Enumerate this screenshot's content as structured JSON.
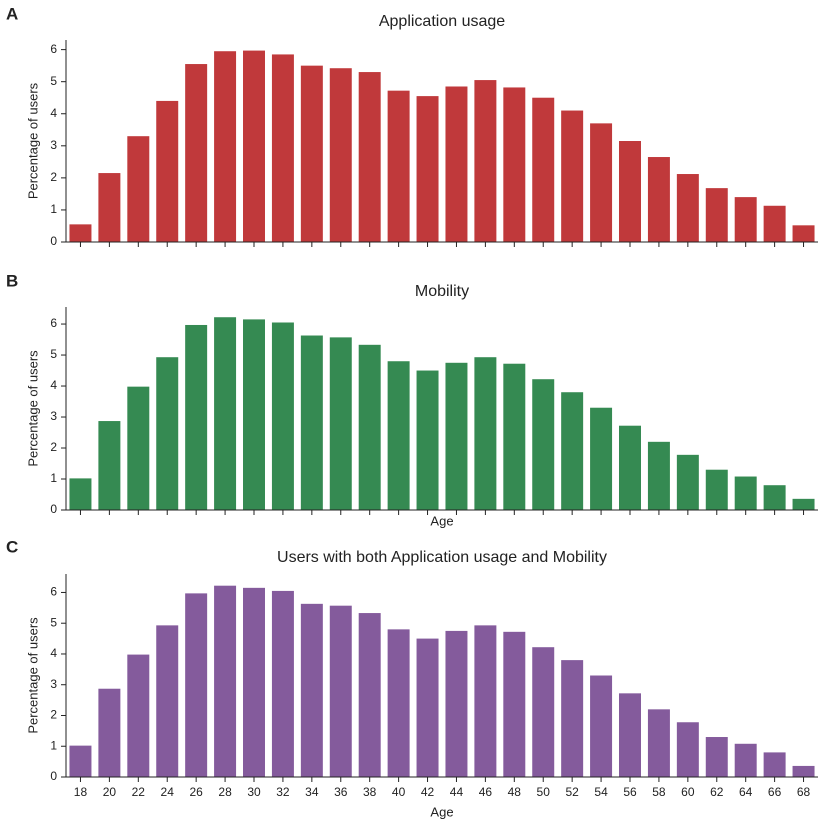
{
  "chart_data": [
    {
      "type": "bar",
      "panel": "A",
      "title": "Application usage",
      "ylabel": "Percentage of users",
      "color": "#c0393b",
      "categories": [
        null,
        null,
        null,
        null,
        null,
        null,
        null,
        null,
        null,
        null,
        null,
        null,
        null,
        null,
        null,
        null,
        null,
        null,
        null,
        null,
        null,
        null,
        null,
        null,
        null,
        null
      ],
      "values": [
        0.55,
        2.15,
        3.3,
        4.4,
        5.55,
        5.95,
        5.97,
        5.85,
        5.5,
        5.42,
        5.3,
        4.72,
        4.55,
        4.85,
        5.05,
        4.82,
        4.5,
        4.1,
        3.7,
        3.15,
        2.65,
        2.12,
        1.68,
        1.4,
        1.13,
        0.52
      ],
      "ylim": [
        0,
        6.3
      ],
      "yticks": [
        0,
        1,
        2,
        3,
        4,
        5,
        6
      ]
    },
    {
      "type": "bar",
      "panel": "B",
      "title": "Mobility",
      "ylabel": "Percentage of users",
      "xlabel": "Age",
      "color": "#358a52",
      "categories": [
        null,
        null,
        null,
        null,
        null,
        null,
        null,
        null,
        null,
        null,
        null,
        null,
        null,
        null,
        null,
        null,
        null,
        null,
        null,
        null,
        null,
        null,
        null,
        null,
        null,
        null
      ],
      "values": [
        1.02,
        2.87,
        3.98,
        4.93,
        5.97,
        6.22,
        6.15,
        6.05,
        5.63,
        5.57,
        5.33,
        4.8,
        4.5,
        4.75,
        4.93,
        4.72,
        4.22,
        3.8,
        3.3,
        2.72,
        2.2,
        1.78,
        1.3,
        1.08,
        0.8,
        0.36
      ],
      "ylim": [
        0,
        6.55
      ],
      "yticks": [
        0,
        1,
        2,
        3,
        4,
        5,
        6
      ]
    },
    {
      "type": "bar",
      "panel": "C",
      "title": "Users with both Application usage and Mobility",
      "ylabel": "Percentage of users",
      "xlabel": "Age",
      "color": "#845b9c",
      "categories": [
        "18",
        "20",
        "22",
        "24",
        "26",
        "28",
        "30",
        "32",
        "34",
        "36",
        "38",
        "40",
        "42",
        "44",
        "46",
        "48",
        "50",
        "52",
        "54",
        "56",
        "58",
        "60",
        "62",
        "64",
        "66",
        "68"
      ],
      "values": [
        1.02,
        2.87,
        3.98,
        4.93,
        5.97,
        6.22,
        6.15,
        6.05,
        5.63,
        5.57,
        5.33,
        4.8,
        4.5,
        4.75,
        4.93,
        4.72,
        4.22,
        3.8,
        3.3,
        2.72,
        2.2,
        1.78,
        1.3,
        1.08,
        0.8,
        0.36
      ],
      "ylim": [
        0,
        6.6
      ],
      "yticks": [
        0,
        1,
        2,
        3,
        4,
        5,
        6
      ]
    }
  ]
}
